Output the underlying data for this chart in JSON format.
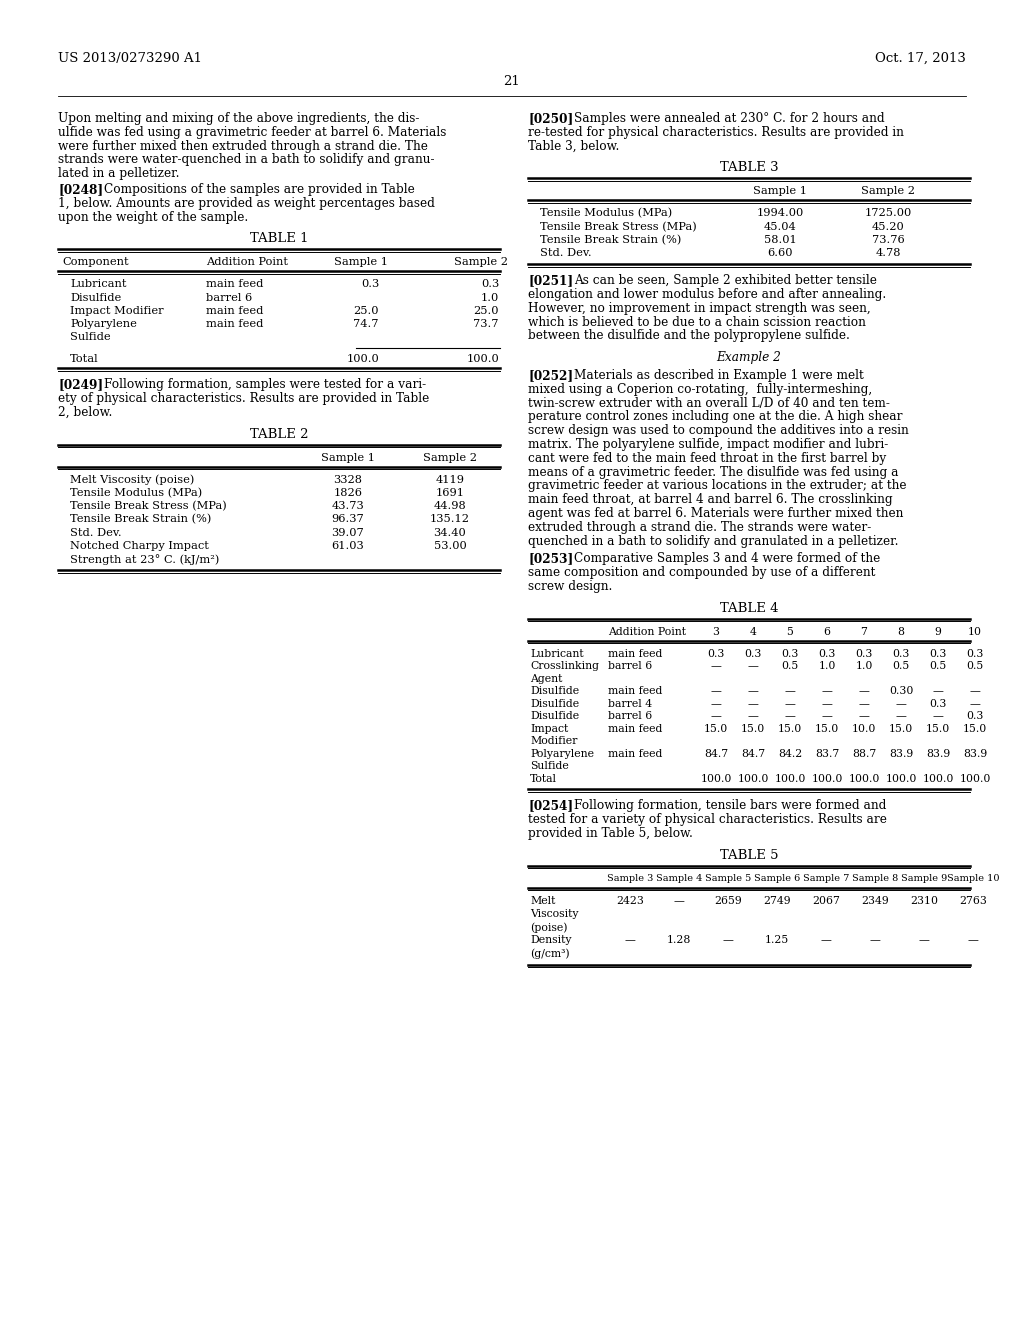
{
  "background_color": "#ffffff",
  "header_left": "US 2013/0273290 A1",
  "header_right": "Oct. 17, 2013",
  "page_number": "21"
}
